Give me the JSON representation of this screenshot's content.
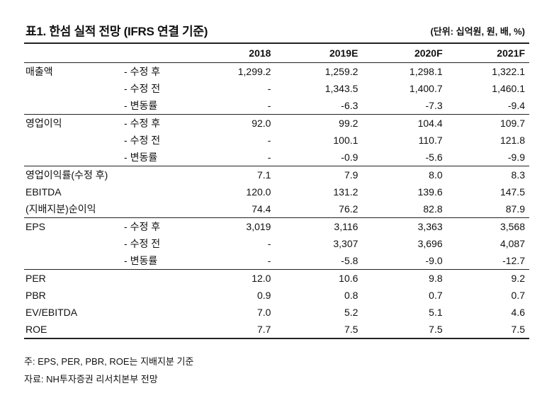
{
  "title": "표1. 한섬 실적 전망 (IFRS 연결 기준)",
  "unit": "(단위: 십억원, 원, 배, %)",
  "headers": [
    "",
    "",
    "2018",
    "2019E",
    "2020F",
    "2021F"
  ],
  "rows": [
    {
      "label": "매출액",
      "sub": "- 수정 후",
      "values": [
        "1,299.2",
        "1,259.2",
        "1,298.1",
        "1,322.1"
      ]
    },
    {
      "label": "",
      "sub": "- 수정 전",
      "values": [
        "-",
        "1,343.5",
        "1,400.7",
        "1,460.1"
      ]
    },
    {
      "label": "",
      "sub": "- 변동률",
      "values": [
        "-",
        "-6.3",
        "-7.3",
        "-9.4"
      ]
    },
    {
      "label": "영업이익",
      "sub": "- 수정 후",
      "values": [
        "92.0",
        "99.2",
        "104.4",
        "109.7"
      ]
    },
    {
      "label": "",
      "sub": "- 수정 전",
      "values": [
        "-",
        "100.1",
        "110.7",
        "121.8"
      ]
    },
    {
      "label": "",
      "sub": "- 변동률",
      "values": [
        "-",
        "-0.9",
        "-5.6",
        "-9.9"
      ]
    },
    {
      "label": "영업이익률(수정 후)",
      "sub": "",
      "values": [
        "7.1",
        "7.9",
        "8.0",
        "8.3"
      ]
    },
    {
      "label": "EBITDA",
      "sub": "",
      "values": [
        "120.0",
        "131.2",
        "139.6",
        "147.5"
      ]
    },
    {
      "label": "(지배지분)순이익",
      "sub": "",
      "values": [
        "74.4",
        "76.2",
        "82.8",
        "87.9"
      ]
    },
    {
      "label": "EPS",
      "sub": "- 수정 후",
      "values": [
        "3,019",
        "3,116",
        "3,363",
        "3,568"
      ]
    },
    {
      "label": "",
      "sub": "- 수정 전",
      "values": [
        "-",
        "3,307",
        "3,696",
        "4,087"
      ]
    },
    {
      "label": "",
      "sub": "- 변동률",
      "values": [
        "-",
        "-5.8",
        "-9.0",
        "-12.7"
      ]
    },
    {
      "label": "PER",
      "sub": "",
      "values": [
        "12.0",
        "10.6",
        "9.8",
        "9.2"
      ]
    },
    {
      "label": "PBR",
      "sub": "",
      "values": [
        "0.9",
        "0.8",
        "0.7",
        "0.7"
      ]
    },
    {
      "label": "EV/EBITDA",
      "sub": "",
      "values": [
        "7.0",
        "5.2",
        "5.1",
        "4.6"
      ]
    },
    {
      "label": "ROE",
      "sub": "",
      "values": [
        "7.7",
        "7.5",
        "7.5",
        "7.5"
      ]
    }
  ],
  "notes": [
    "주: EPS, PER, PBR, ROE는 지배지분 기준",
    "자료: NH투자증권 리서치본부 전망"
  ]
}
